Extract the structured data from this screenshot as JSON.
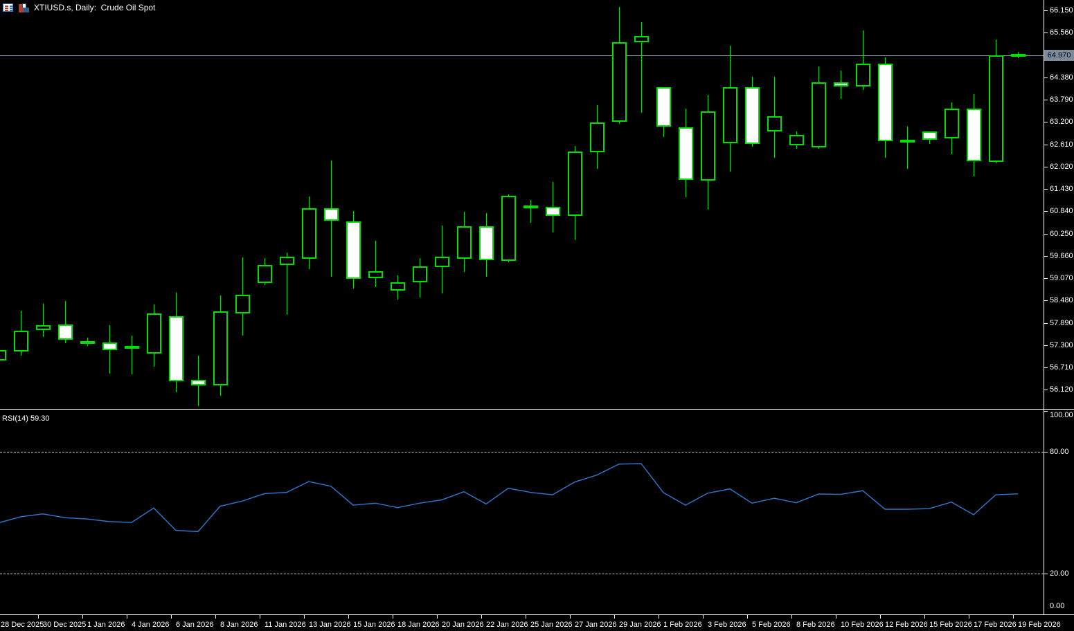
{
  "window": {
    "title": "XTIUSD.s, Daily:  Crude Oil Spot"
  },
  "icons": {
    "left": "quotes-grid-icon",
    "right": "chart-window-icon"
  },
  "indicator_label": "RSI(14) 59.30",
  "price_axis": {
    "ticks": [
      "66.150",
      "65.560",
      "64.970",
      "64.380",
      "63.790",
      "63.200",
      "62.610",
      "62.020",
      "61.430",
      "60.840",
      "60.250",
      "59.660",
      "59.070",
      "58.480",
      "57.890",
      "57.300",
      "56.710",
      "56.120"
    ],
    "current_price": "64.970"
  },
  "rsi_axis": {
    "ticks": [
      {
        "label": "100.00",
        "value": 100
      },
      {
        "label": "80.00",
        "value": 80
      },
      {
        "label": "20.00",
        "value": 20
      },
      {
        "label": "0.00",
        "value": 0
      }
    ],
    "dashed_levels": [
      80,
      20
    ]
  },
  "time_axis": {
    "labels": [
      {
        "text": "28 Dec 2025",
        "candle": 0
      },
      {
        "text": "30 Dec 2025",
        "candle": 2
      },
      {
        "text": "1 Jan 2026",
        "candle": 4
      },
      {
        "text": "4 Jan 2026",
        "candle": 6
      },
      {
        "text": "6 Jan 2026",
        "candle": 8
      },
      {
        "text": "8 Jan 2026",
        "candle": 10
      },
      {
        "text": "11 Jan 2026",
        "candle": 12
      },
      {
        "text": "13 Jan 2026",
        "candle": 14
      },
      {
        "text": "15 Jan 2026",
        "candle": 16
      },
      {
        "text": "18 Jan 2026",
        "candle": 18
      },
      {
        "text": "20 Jan 2026",
        "candle": 20
      },
      {
        "text": "22 Jan 2026",
        "candle": 22
      },
      {
        "text": "25 Jan 2026",
        "candle": 24
      },
      {
        "text": "27 Jan 2026",
        "candle": 26
      },
      {
        "text": "29 Jan 2026",
        "candle": 28
      },
      {
        "text": "1 Feb 2026",
        "candle": 30
      },
      {
        "text": "3 Feb 2026",
        "candle": 32
      },
      {
        "text": "5 Feb 2026",
        "candle": 34
      },
      {
        "text": "8 Feb 2026",
        "candle": 36
      },
      {
        "text": "10 Feb 2026",
        "candle": 38
      },
      {
        "text": "12 Feb 2026",
        "candle": 40
      },
      {
        "text": "15 Feb 2026",
        "candle": 42
      },
      {
        "text": "17 Feb 2026",
        "candle": 44
      },
      {
        "text": "19 Feb 2026",
        "candle": 46
      }
    ]
  },
  "colors": {
    "background": "#000000",
    "candle_outline": "#00e000",
    "bull_fill": "#000000",
    "bear_fill": "#ffffff",
    "axis": "#ffffff",
    "axis_text": "#ffffff",
    "current_price_line": "#90a0ae",
    "current_price_badge": "#7c8c9c",
    "rsi_line": "#2d72c4",
    "rsi_dashed_level": "#c8c8c8"
  },
  "chart_data": {
    "type": "candlestick",
    "symbol": "XTIUSD.s",
    "timeframe": "Daily",
    "description": "Crude Oil Spot",
    "price_axis_range": {
      "top_tick": 66.15,
      "bottom_tick": 56.12,
      "tick_step": 0.59
    },
    "candles": [
      {
        "date": "28 Dec 2025",
        "o": 56.89,
        "h": 57.2,
        "l": 56.85,
        "c": 57.17
      },
      {
        "date": "29 Dec 2025",
        "o": 57.14,
        "h": 58.22,
        "l": 57.02,
        "c": 57.69
      },
      {
        "date": "30 Dec 2025",
        "o": 57.69,
        "h": 58.39,
        "l": 57.52,
        "c": 57.83
      },
      {
        "date": "31 Dec 2025",
        "o": 57.84,
        "h": 58.47,
        "l": 57.36,
        "c": 57.45
      },
      {
        "date": "1 Jan 2026",
        "o": 57.33,
        "h": 57.49,
        "l": 57.28,
        "c": 57.41
      },
      {
        "date": "2 Jan 2026",
        "o": 57.37,
        "h": 57.83,
        "l": 56.55,
        "c": 57.17
      },
      {
        "date": "4 Jan 2026",
        "o": 57.21,
        "h": 57.55,
        "l": 56.52,
        "c": 57.28
      },
      {
        "date": "5 Jan 2026",
        "o": 57.08,
        "h": 58.37,
        "l": 56.73,
        "c": 58.13
      },
      {
        "date": "6 Jan 2026",
        "o": 58.06,
        "h": 58.69,
        "l": 56.06,
        "c": 56.35
      },
      {
        "date": "7 Jan 2026",
        "o": 56.39,
        "h": 57.02,
        "l": 55.69,
        "c": 56.24
      },
      {
        "date": "8 Jan 2026",
        "o": 56.23,
        "h": 58.62,
        "l": 55.97,
        "c": 58.2
      },
      {
        "date": "9 Jan 2026",
        "o": 58.13,
        "h": 59.62,
        "l": 57.55,
        "c": 58.63
      },
      {
        "date": "11 Jan 2026",
        "o": 58.94,
        "h": 59.61,
        "l": 58.88,
        "c": 59.42
      },
      {
        "date": "12 Jan 2026",
        "o": 59.41,
        "h": 59.74,
        "l": 58.1,
        "c": 59.64
      },
      {
        "date": "13 Jan 2026",
        "o": 59.58,
        "h": 61.23,
        "l": 59.3,
        "c": 60.92
      },
      {
        "date": "14 Jan 2026",
        "o": 60.91,
        "h": 62.18,
        "l": 59.11,
        "c": 60.59
      },
      {
        "date": "15 Jan 2026",
        "o": 60.57,
        "h": 60.85,
        "l": 58.79,
        "c": 59.06
      },
      {
        "date": "16 Jan 2026",
        "o": 59.07,
        "h": 60.05,
        "l": 58.83,
        "c": 59.26
      },
      {
        "date": "18 Jan 2026",
        "o": 58.74,
        "h": 59.15,
        "l": 58.5,
        "c": 58.97
      },
      {
        "date": "19 Jan 2026",
        "o": 58.96,
        "h": 59.61,
        "l": 58.56,
        "c": 59.39
      },
      {
        "date": "20 Jan 2026",
        "o": 59.37,
        "h": 60.46,
        "l": 58.67,
        "c": 59.64
      },
      {
        "date": "21 Jan 2026",
        "o": 59.58,
        "h": 60.83,
        "l": 59.24,
        "c": 60.45
      },
      {
        "date": "22 Jan 2026",
        "o": 60.44,
        "h": 60.79,
        "l": 59.11,
        "c": 59.55
      },
      {
        "date": "23 Jan 2026",
        "o": 59.53,
        "h": 61.29,
        "l": 59.5,
        "c": 61.24
      },
      {
        "date": "25 Jan 2026",
        "o": 60.91,
        "h": 61.13,
        "l": 60.54,
        "c": 61.0
      },
      {
        "date": "26 Jan 2026",
        "o": 60.95,
        "h": 61.62,
        "l": 60.27,
        "c": 60.72
      },
      {
        "date": "27 Jan 2026",
        "o": 60.72,
        "h": 62.56,
        "l": 60.07,
        "c": 62.42
      },
      {
        "date": "28 Jan 2026",
        "o": 62.4,
        "h": 63.64,
        "l": 61.97,
        "c": 63.19
      },
      {
        "date": "29 Jan 2026",
        "o": 63.2,
        "h": 66.24,
        "l": 63.15,
        "c": 65.31
      },
      {
        "date": "30 Jan 2026",
        "o": 65.3,
        "h": 65.83,
        "l": 63.44,
        "c": 65.47
      },
      {
        "date": "1 Feb 2026",
        "o": 64.12,
        "h": 64.12,
        "l": 62.8,
        "c": 63.08
      },
      {
        "date": "2 Feb 2026",
        "o": 63.05,
        "h": 63.56,
        "l": 61.22,
        "c": 61.67
      },
      {
        "date": "3 Feb 2026",
        "o": 61.65,
        "h": 63.92,
        "l": 60.89,
        "c": 63.48
      },
      {
        "date": "4 Feb 2026",
        "o": 62.64,
        "h": 65.22,
        "l": 61.88,
        "c": 64.12
      },
      {
        "date": "5 Feb 2026",
        "o": 64.12,
        "h": 64.4,
        "l": 62.55,
        "c": 62.62
      },
      {
        "date": "6 Feb 2026",
        "o": 62.95,
        "h": 64.4,
        "l": 62.25,
        "c": 63.36
      },
      {
        "date": "8 Feb 2026",
        "o": 62.58,
        "h": 62.95,
        "l": 62.49,
        "c": 62.86
      },
      {
        "date": "9 Feb 2026",
        "o": 62.53,
        "h": 64.67,
        "l": 62.49,
        "c": 64.24
      },
      {
        "date": "10 Feb 2026",
        "o": 64.24,
        "h": 64.56,
        "l": 63.8,
        "c": 64.14
      },
      {
        "date": "11 Feb 2026",
        "o": 64.14,
        "h": 65.62,
        "l": 64.05,
        "c": 64.75
      },
      {
        "date": "12 Feb 2026",
        "o": 64.75,
        "h": 64.91,
        "l": 62.25,
        "c": 62.69
      },
      {
        "date": "13 Feb 2026",
        "o": 62.67,
        "h": 63.08,
        "l": 61.97,
        "c": 62.73
      },
      {
        "date": "15 Feb 2026",
        "o": 62.95,
        "h": 62.95,
        "l": 62.62,
        "c": 62.73
      },
      {
        "date": "16 Feb 2026",
        "o": 62.77,
        "h": 63.71,
        "l": 62.35,
        "c": 63.55
      },
      {
        "date": "17 Feb 2026",
        "o": 63.56,
        "h": 63.94,
        "l": 61.76,
        "c": 62.17
      },
      {
        "date": "18 Feb 2026",
        "o": 62.14,
        "h": 65.38,
        "l": 62.11,
        "c": 64.97
      },
      {
        "date": "19 Feb 2026",
        "o": 64.94,
        "h": 65.05,
        "l": 64.89,
        "c": 64.99
      }
    ],
    "rsi": {
      "name": "RSI",
      "period": 14,
      "last_value": 59.3,
      "ylim": [
        0,
        100
      ],
      "levels": [
        80,
        20
      ],
      "values": [
        45.2,
        48.0,
        49.4,
        47.5,
        46.9,
        45.6,
        45.2,
        52.3,
        41.3,
        40.7,
        53.2,
        55.7,
        59.4,
        60.0,
        65.3,
        63.0,
        53.7,
        54.7,
        52.5,
        54.7,
        56.3,
        60.3,
        54.3,
        62.0,
        60.0,
        58.8,
        65.1,
        68.5,
        73.9,
        74.1,
        59.9,
        53.7,
        59.6,
        61.7,
        54.7,
        57.1,
        54.9,
        59.2,
        59.0,
        60.8,
        51.7,
        51.7,
        52.0,
        55.2,
        49.0,
        58.8,
        59.3
      ]
    }
  }
}
